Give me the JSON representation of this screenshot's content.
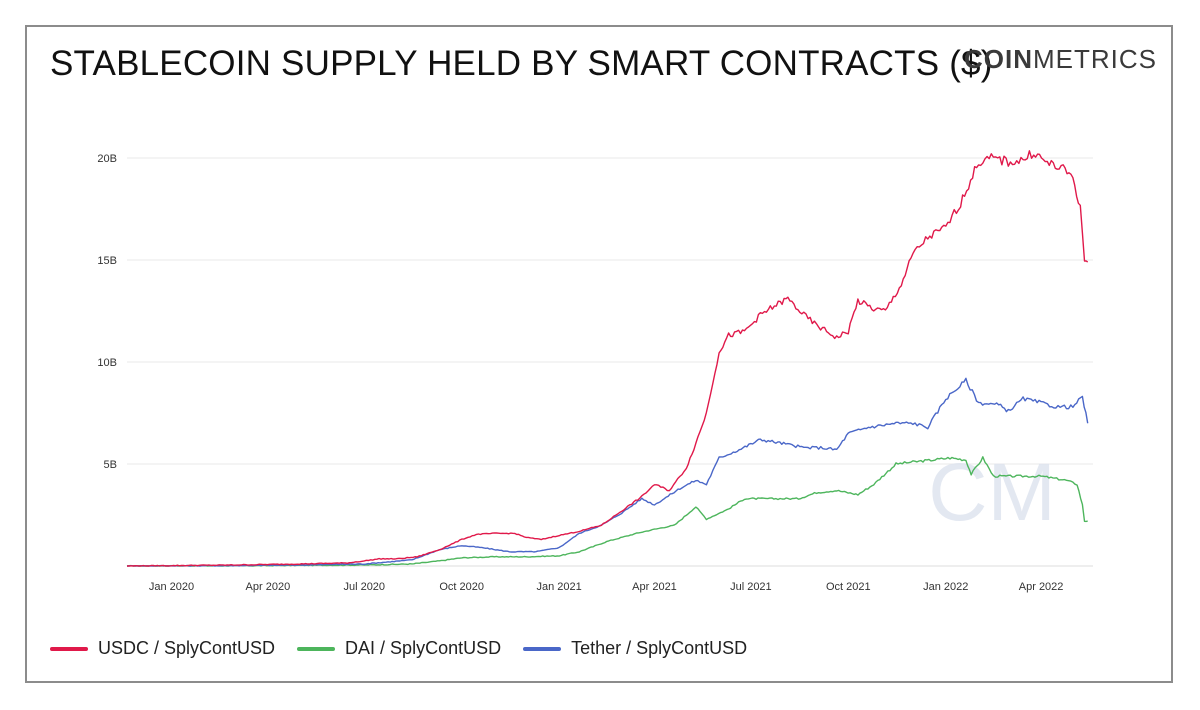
{
  "title": "STABLECOIN SUPPLY HELD BY SMART CONTRACTS ($)",
  "logo": {
    "bold": "COIN",
    "light": "METRICS"
  },
  "watermark": "CM",
  "colors": {
    "usdc": "#e0194a",
    "dai": "#4db55c",
    "tether": "#4a67c8",
    "grid": "#e9e9e9",
    "axis_text": "#333333",
    "border": "#8c8c8c"
  },
  "chart_data": {
    "type": "line",
    "title": "STABLECOIN SUPPLY HELD BY SMART CONTRACTS ($)",
    "xlabel": "",
    "ylabel": "",
    "ylim": [
      0,
      21
    ],
    "y_ticks": [
      {
        "v": 5,
        "label": "5B"
      },
      {
        "v": 10,
        "label": "10B"
      },
      {
        "v": 15,
        "label": "15B"
      },
      {
        "v": 20,
        "label": "20B"
      }
    ],
    "x_ticks": [
      {
        "date": "2020-01-01",
        "label": "Jan 2020"
      },
      {
        "date": "2020-04-01",
        "label": "Apr 2020"
      },
      {
        "date": "2020-07-01",
        "label": "Jul 2020"
      },
      {
        "date": "2020-10-01",
        "label": "Oct 2020"
      },
      {
        "date": "2021-01-01",
        "label": "Jan 2021"
      },
      {
        "date": "2021-04-01",
        "label": "Apr 2021"
      },
      {
        "date": "2021-07-01",
        "label": "Jul 2021"
      },
      {
        "date": "2021-10-01",
        "label": "Oct 2021"
      },
      {
        "date": "2022-01-01",
        "label": "Jan 2022"
      },
      {
        "date": "2022-04-01",
        "label": "Apr 2022"
      }
    ],
    "x_range": [
      "2019-11-20",
      "2022-05-20"
    ],
    "grid": true,
    "legend_position": "bottom-left",
    "series": [
      {
        "name": "USDC / SplyContUSD",
        "key": "usdc",
        "points": [
          [
            "2019-11-20",
            0.0
          ],
          [
            "2020-01-01",
            0.02
          ],
          [
            "2020-03-01",
            0.05
          ],
          [
            "2020-05-01",
            0.1
          ],
          [
            "2020-06-15",
            0.15
          ],
          [
            "2020-07-01",
            0.25
          ],
          [
            "2020-07-15",
            0.35
          ],
          [
            "2020-08-01",
            0.35
          ],
          [
            "2020-08-20",
            0.45
          ],
          [
            "2020-09-10",
            0.8
          ],
          [
            "2020-10-01",
            1.3
          ],
          [
            "2020-10-15",
            1.55
          ],
          [
            "2020-11-01",
            1.6
          ],
          [
            "2020-11-20",
            1.6
          ],
          [
            "2020-12-01",
            1.4
          ],
          [
            "2020-12-15",
            1.3
          ],
          [
            "2021-01-01",
            1.5
          ],
          [
            "2021-01-20",
            1.7
          ],
          [
            "2021-02-10",
            2.0
          ],
          [
            "2021-03-01",
            2.7
          ],
          [
            "2021-03-20",
            3.4
          ],
          [
            "2021-04-01",
            4.0
          ],
          [
            "2021-04-15",
            3.7
          ],
          [
            "2021-05-01",
            4.8
          ],
          [
            "2021-05-10",
            6.0
          ],
          [
            "2021-05-20",
            7.5
          ],
          [
            "2021-06-01",
            10.5
          ],
          [
            "2021-06-10",
            11.3
          ],
          [
            "2021-06-25",
            11.5
          ],
          [
            "2021-07-10",
            12.3
          ],
          [
            "2021-07-25",
            12.8
          ],
          [
            "2021-08-05",
            13.1
          ],
          [
            "2021-08-20",
            12.3
          ],
          [
            "2021-09-01",
            11.8
          ],
          [
            "2021-09-20",
            11.2
          ],
          [
            "2021-10-01",
            11.5
          ],
          [
            "2021-10-10",
            13.0
          ],
          [
            "2021-10-25",
            12.6
          ],
          [
            "2021-11-05",
            12.5
          ],
          [
            "2021-11-20",
            13.8
          ],
          [
            "2021-12-01",
            15.3
          ],
          [
            "2021-12-15",
            16.1
          ],
          [
            "2022-01-01",
            16.6
          ],
          [
            "2022-01-15",
            17.8
          ],
          [
            "2022-02-01",
            19.8
          ],
          [
            "2022-02-15",
            20.0
          ],
          [
            "2022-03-01",
            19.8
          ],
          [
            "2022-03-15",
            19.9
          ],
          [
            "2022-03-25",
            20.3
          ],
          [
            "2022-04-05",
            19.8
          ],
          [
            "2022-04-20",
            19.5
          ],
          [
            "2022-05-01",
            19.1
          ],
          [
            "2022-05-08",
            17.5
          ],
          [
            "2022-05-12",
            15.0
          ],
          [
            "2022-05-15",
            14.9
          ]
        ]
      },
      {
        "name": "DAI / SplyContUSD",
        "key": "dai",
        "points": [
          [
            "2019-11-20",
            0.0
          ],
          [
            "2020-03-01",
            0.01
          ],
          [
            "2020-07-01",
            0.05
          ],
          [
            "2020-08-15",
            0.1
          ],
          [
            "2020-09-10",
            0.25
          ],
          [
            "2020-10-01",
            0.4
          ],
          [
            "2020-11-01",
            0.45
          ],
          [
            "2020-12-01",
            0.45
          ],
          [
            "2021-01-01",
            0.5
          ],
          [
            "2021-01-20",
            0.7
          ],
          [
            "2021-02-15",
            1.2
          ],
          [
            "2021-03-15",
            1.6
          ],
          [
            "2021-04-01",
            1.8
          ],
          [
            "2021-04-20",
            2.0
          ],
          [
            "2021-05-10",
            2.9
          ],
          [
            "2021-05-20",
            2.3
          ],
          [
            "2021-06-10",
            2.8
          ],
          [
            "2021-06-25",
            3.3
          ],
          [
            "2021-07-15",
            3.3
          ],
          [
            "2021-08-15",
            3.3
          ],
          [
            "2021-09-01",
            3.6
          ],
          [
            "2021-09-20",
            3.7
          ],
          [
            "2021-10-10",
            3.5
          ],
          [
            "2021-10-25",
            4.0
          ],
          [
            "2021-11-15",
            5.0
          ],
          [
            "2021-12-01",
            5.1
          ],
          [
            "2021-12-20",
            5.2
          ],
          [
            "2022-01-05",
            5.3
          ],
          [
            "2022-01-20",
            5.2
          ],
          [
            "2022-01-25",
            4.5
          ],
          [
            "2022-02-05",
            5.3
          ],
          [
            "2022-02-15",
            4.4
          ],
          [
            "2022-03-01",
            4.4
          ],
          [
            "2022-04-01",
            4.4
          ],
          [
            "2022-04-25",
            4.2
          ],
          [
            "2022-05-05",
            4.0
          ],
          [
            "2022-05-10",
            3.0
          ],
          [
            "2022-05-12",
            2.2
          ],
          [
            "2022-05-15",
            2.2
          ]
        ]
      },
      {
        "name": "Tether / SplyContUSD",
        "key": "tether",
        "points": [
          [
            "2019-11-20",
            0.0
          ],
          [
            "2020-03-01",
            0.02
          ],
          [
            "2020-05-01",
            0.05
          ],
          [
            "2020-07-01",
            0.1
          ],
          [
            "2020-08-15",
            0.3
          ],
          [
            "2020-09-10",
            0.8
          ],
          [
            "2020-10-01",
            1.0
          ],
          [
            "2020-10-20",
            0.9
          ],
          [
            "2020-11-15",
            0.7
          ],
          [
            "2020-12-10",
            0.7
          ],
          [
            "2021-01-01",
            0.9
          ],
          [
            "2021-01-20",
            1.6
          ],
          [
            "2021-02-10",
            2.0
          ],
          [
            "2021-03-01",
            2.6
          ],
          [
            "2021-03-20",
            3.3
          ],
          [
            "2021-04-01",
            3.0
          ],
          [
            "2021-04-25",
            3.8
          ],
          [
            "2021-05-10",
            4.2
          ],
          [
            "2021-05-20",
            4.0
          ],
          [
            "2021-06-01",
            5.3
          ],
          [
            "2021-06-20",
            5.7
          ],
          [
            "2021-07-10",
            6.2
          ],
          [
            "2021-08-01",
            6.0
          ],
          [
            "2021-08-20",
            5.8
          ],
          [
            "2021-09-05",
            5.8
          ],
          [
            "2021-09-20",
            5.7
          ],
          [
            "2021-10-01",
            6.5
          ],
          [
            "2021-10-20",
            6.8
          ],
          [
            "2021-11-15",
            7.0
          ],
          [
            "2021-12-01",
            7.0
          ],
          [
            "2021-12-15",
            6.8
          ],
          [
            "2022-01-01",
            8.2
          ],
          [
            "2022-01-20",
            9.1
          ],
          [
            "2022-02-01",
            8.0
          ],
          [
            "2022-02-20",
            7.9
          ],
          [
            "2022-03-01",
            7.6
          ],
          [
            "2022-03-15",
            8.2
          ],
          [
            "2022-04-01",
            8.0
          ],
          [
            "2022-04-15",
            7.8
          ],
          [
            "2022-05-01",
            7.8
          ],
          [
            "2022-05-10",
            8.3
          ],
          [
            "2022-05-15",
            7.0
          ]
        ]
      }
    ]
  }
}
